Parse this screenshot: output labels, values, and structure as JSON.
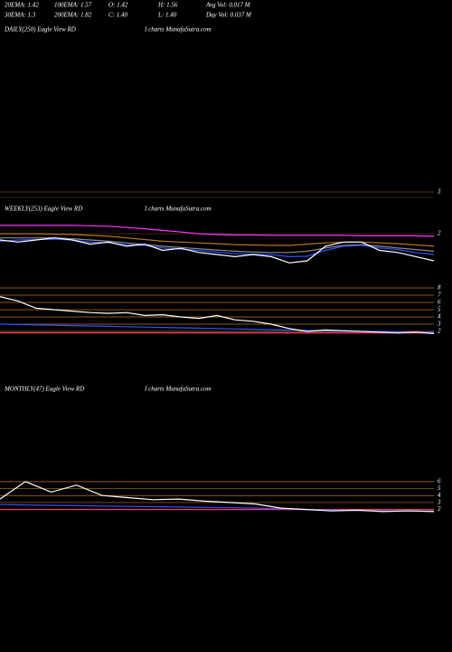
{
  "header": [
    [
      "20EMA: 1.42",
      "100EMA: 1.57",
      "O: 1.42",
      "H: 1.56",
      "Avg Vol: 0.017 M"
    ],
    [
      "30EMA: 1.3",
      "200EMA: 1.82",
      "C: 1.40",
      "L: 1.40",
      "Day Vol: 0.037 M"
    ]
  ],
  "chart_data": [
    {
      "type": "line",
      "title": "DAILY(250) Eagle  View  RD",
      "subtitle": "I charts MunafaSutra.com"
    },
    {
      "type": "line",
      "title": "WEEKLY(253) Eagle  View  RD",
      "subtitle": "I charts MunafaSutra.com",
      "ylim": [
        0.7,
        3
      ],
      "yticks": [
        2,
        3
      ],
      "grid": true,
      "grid_color": "#6b3a1a",
      "series": [
        {
          "color": "#ff33ff",
          "values": [
            2.2,
            2.2,
            2.2,
            2.2,
            2.2,
            2.19,
            2.18,
            2.15,
            2.12,
            2.08,
            2.04,
            2.0,
            1.98,
            1.97,
            1.97,
            1.96,
            1.96,
            1.96,
            1.96,
            1.96,
            1.95,
            1.95,
            1.95,
            1.95,
            1.94
          ]
        },
        {
          "color": "#b8741f",
          "values": [
            2.0,
            2.0,
            2.0,
            1.99,
            1.98,
            1.96,
            1.94,
            1.9,
            1.86,
            1.82,
            1.8,
            1.78,
            1.76,
            1.74,
            1.73,
            1.72,
            1.72,
            1.75,
            1.78,
            1.8,
            1.8,
            1.78,
            1.76,
            1.73,
            1.7
          ]
        },
        {
          "color": "#8a8a8a",
          "values": [
            1.9,
            1.9,
            1.9,
            1.9,
            1.88,
            1.85,
            1.82,
            1.78,
            1.74,
            1.7,
            1.67,
            1.64,
            1.61,
            1.58,
            1.56,
            1.55,
            1.55,
            1.58,
            1.66,
            1.72,
            1.74,
            1.7,
            1.66,
            1.62,
            1.58
          ]
        },
        {
          "color": "#3050ff",
          "values": [
            1.82,
            1.85,
            1.86,
            1.87,
            1.85,
            1.8,
            1.78,
            1.74,
            1.72,
            1.66,
            1.63,
            1.6,
            1.56,
            1.52,
            1.51,
            1.5,
            1.45,
            1.46,
            1.6,
            1.7,
            1.72,
            1.66,
            1.62,
            1.55,
            1.5
          ]
        },
        {
          "color": "#ffffff",
          "values": [
            1.85,
            1.8,
            1.85,
            1.9,
            1.85,
            1.75,
            1.8,
            1.7,
            1.75,
            1.6,
            1.65,
            1.55,
            1.5,
            1.45,
            1.5,
            1.45,
            1.3,
            1.35,
            1.7,
            1.8,
            1.8,
            1.6,
            1.55,
            1.45,
            1.35
          ]
        }
      ]
    },
    {
      "type": "line",
      "ylim": [
        1.5,
        8.5
      ],
      "yticks": [
        8,
        7,
        6,
        5,
        4,
        3,
        2
      ],
      "grid": true,
      "grid_color": "#b8741f",
      "series": [
        {
          "color": "#ff3366",
          "values": [
            1.8,
            1.8,
            1.8,
            1.8,
            1.8,
            1.8,
            1.8,
            1.8,
            1.8,
            1.8,
            1.8,
            1.8,
            1.8,
            1.8,
            1.8,
            1.8,
            1.8,
            1.8,
            1.8,
            1.8,
            1.8,
            1.8,
            1.8,
            1.8,
            1.8
          ]
        },
        {
          "color": "#3050ff",
          "values": [
            3.0,
            2.95,
            2.9,
            2.85,
            2.8,
            2.75,
            2.7,
            2.65,
            2.6,
            2.55,
            2.5,
            2.45,
            2.4,
            2.35,
            2.3,
            2.25,
            2.2,
            2.15,
            2.1,
            2.05,
            2.0,
            2.0,
            1.95,
            1.9,
            1.9
          ]
        },
        {
          "color": "#ffffff",
          "values": [
            6.8,
            6.2,
            5.2,
            5.0,
            4.8,
            4.6,
            4.5,
            4.6,
            4.2,
            4.3,
            4.0,
            3.8,
            4.2,
            3.6,
            3.4,
            3.0,
            2.4,
            2.0,
            2.2,
            2.1,
            2.0,
            1.9,
            1.8,
            1.9,
            1.7
          ]
        }
      ]
    },
    {
      "type": "line",
      "title": "MONTHLY(47) Eagle  View  RD",
      "subtitle": "I charts MunafaSutra.com",
      "ylim": [
        1.3,
        6.5
      ],
      "yticks": [
        6,
        5,
        4,
        3,
        2
      ],
      "grid": true,
      "grid_color": "#b8741f",
      "series": [
        {
          "color": "#ff3366",
          "values": [
            2.0,
            2.0,
            2.0,
            2.0,
            2.0,
            2.0,
            2.0,
            2.0,
            2.0,
            2.0,
            2.0,
            2.0,
            2.0,
            2.0,
            2.0,
            2.0,
            2.0,
            2.0
          ]
        },
        {
          "color": "#3050ff",
          "values": [
            2.7,
            2.65,
            2.6,
            2.55,
            2.5,
            2.45,
            2.4,
            2.35,
            2.3,
            2.25,
            2.2,
            2.1,
            2.0,
            1.9,
            1.85,
            1.8,
            1.8,
            1.75
          ]
        },
        {
          "color": "#ffffff",
          "values": [
            3.5,
            6.0,
            4.5,
            5.5,
            4.0,
            3.7,
            3.4,
            3.5,
            3.2,
            3.0,
            2.8,
            2.2,
            2.0,
            1.8,
            1.9,
            1.7,
            1.8,
            1.7
          ]
        }
      ]
    }
  ]
}
